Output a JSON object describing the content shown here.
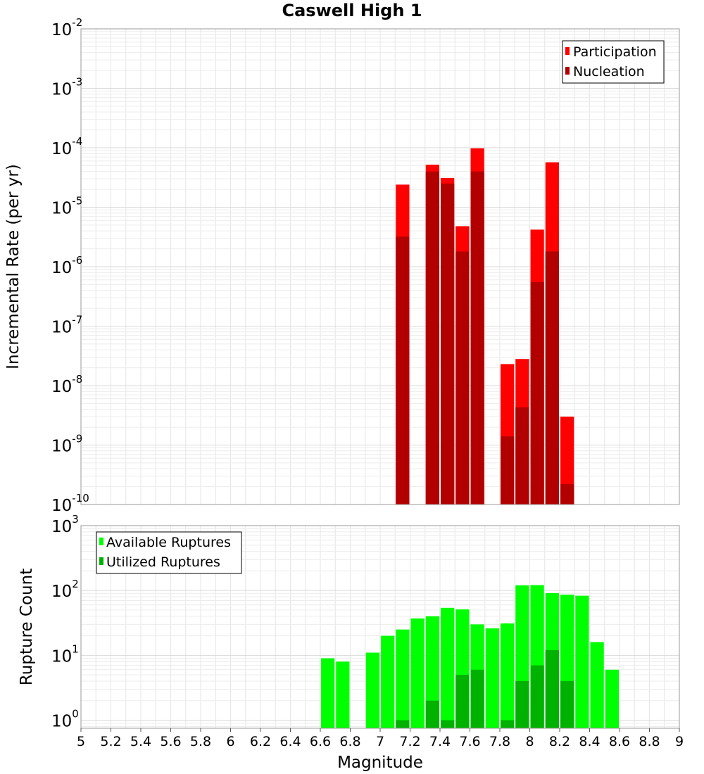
{
  "chart_data": [
    {
      "type": "bar",
      "title": "Caswell High 1",
      "xlabel": "",
      "ylabel": "Incremental Rate (per yr)",
      "yscale": "log",
      "ylim": [
        1e-10,
        0.01
      ],
      "xlim": [
        5,
        9
      ],
      "ytick_labels": [
        "10^-10",
        "10^-9",
        "10^-8",
        "10^-7",
        "10^-6",
        "10^-5",
        "10^-4",
        "10^-3",
        "10^-2"
      ],
      "grid": true,
      "legend": "top-right",
      "colors": {
        "Participation": "#ff0000",
        "Nucleation": "#b20000"
      },
      "series": [
        {
          "name": "Participation",
          "x": [
            7.15,
            7.35,
            7.45,
            7.55,
            7.65,
            7.85,
            7.95,
            8.05,
            8.15,
            8.25
          ],
          "values": [
            2.4e-05,
            5.2e-05,
            3.1e-05,
            4.8e-06,
            9.8e-05,
            2.3e-08,
            2.8e-08,
            4.2e-06,
            5.7e-05,
            3e-09
          ]
        },
        {
          "name": "Nucleation",
          "x": [
            7.15,
            7.35,
            7.45,
            7.55,
            7.65,
            7.85,
            7.95,
            8.05,
            8.15,
            8.25
          ],
          "values": [
            3.2e-06,
            4e-05,
            2.5e-05,
            1.8e-06,
            4e-05,
            1.4e-09,
            4.3e-09,
            5.5e-07,
            1.8e-06,
            2.2e-10
          ]
        }
      ]
    },
    {
      "type": "bar",
      "xlabel": "Magnitude",
      "ylabel": "Rupture Count",
      "yscale": "log",
      "ylim": [
        0.75,
        1000
      ],
      "xlim": [
        5,
        9
      ],
      "ytick_labels": [
        "10^0",
        "10^1",
        "10^2",
        "10^3"
      ],
      "xticks": [
        5,
        5.2,
        5.4,
        5.6,
        5.8,
        6,
        6.2,
        6.4,
        6.6,
        6.8,
        7,
        7.2,
        7.4,
        7.6,
        7.8,
        8,
        8.2,
        8.4,
        8.6,
        8.8,
        9
      ],
      "grid": true,
      "legend": "top-left",
      "colors": {
        "Available Ruptures": "#00ff00",
        "Utilized Ruptures": "#00b200"
      },
      "series": [
        {
          "name": "Available Ruptures",
          "x": [
            6.65,
            6.75,
            6.95,
            7.05,
            7.15,
            7.25,
            7.35,
            7.45,
            7.55,
            7.65,
            7.75,
            7.85,
            7.95,
            8.05,
            8.15,
            8.25,
            8.35,
            8.45,
            8.55
          ],
          "values": [
            9,
            8,
            11,
            20,
            25,
            37,
            40,
            54,
            51,
            30,
            26,
            31,
            120,
            121,
            91,
            86,
            83,
            16,
            6
          ]
        },
        {
          "name": "Utilized Ruptures",
          "x": [
            7.15,
            7.35,
            7.45,
            7.55,
            7.65,
            7.85,
            7.95,
            8.05,
            8.15,
            8.25
          ],
          "values": [
            1,
            2,
            1,
            5,
            6,
            1,
            4,
            7,
            12,
            4
          ]
        }
      ]
    }
  ]
}
